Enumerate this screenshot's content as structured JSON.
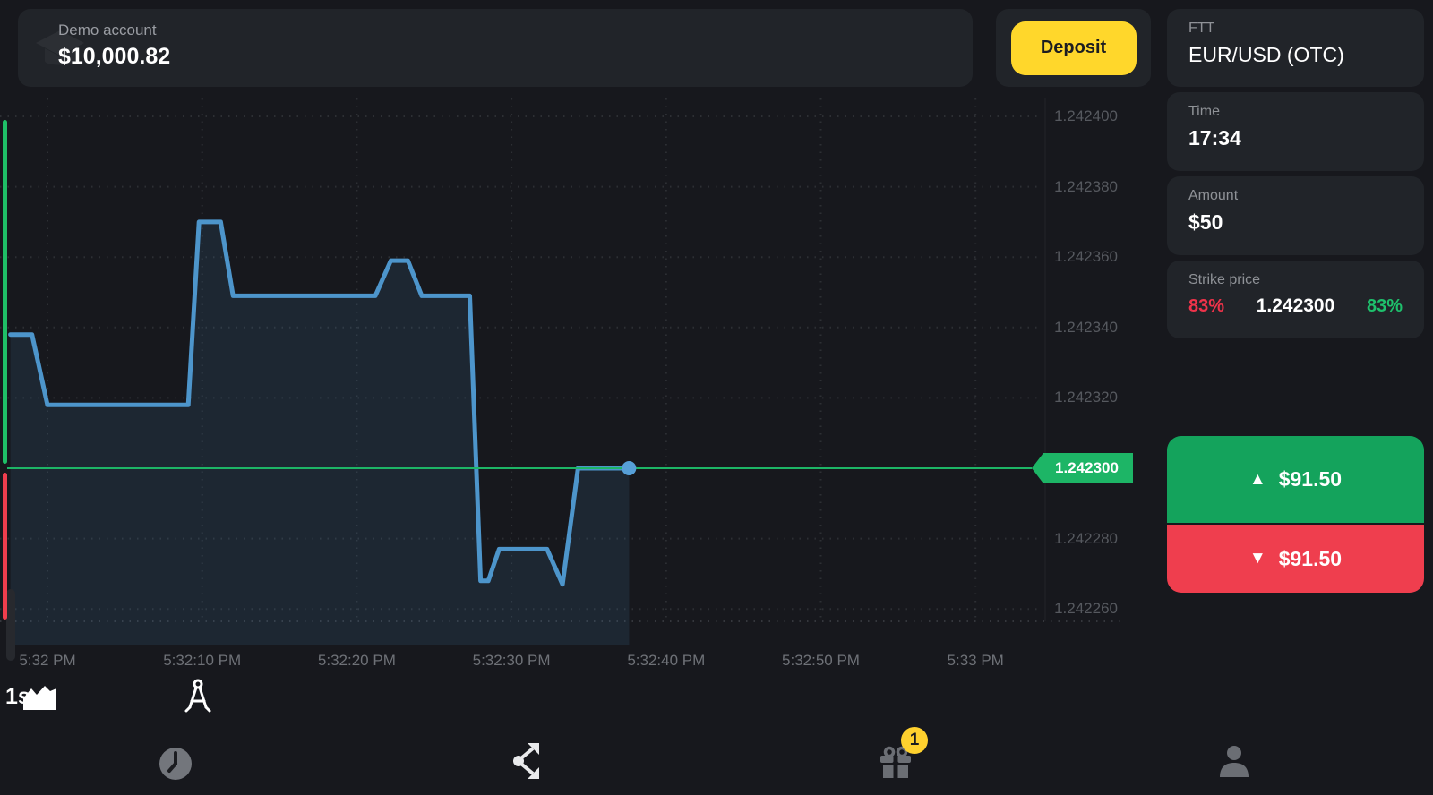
{
  "header": {
    "account_label": "Demo account",
    "balance": "$10,000.82",
    "deposit_label": "Deposit"
  },
  "ticker": {
    "category": "FTT",
    "pair": "EUR/USD (OTC)"
  },
  "order_panel": {
    "time_label": "Time",
    "time_value": "17:34",
    "amount_label": "Amount",
    "amount_value": "$50",
    "strike_label": "Strike price",
    "strike_down_pct": "83%",
    "strike_price": "1.242300",
    "strike_up_pct": "83%",
    "up_arrow": "▲",
    "up_payout": "$91.50",
    "down_arrow": "▼",
    "down_payout": "$91.50"
  },
  "chart_toolbar": {
    "chart_type_icon": "area-chart-icon",
    "timeframe": "1s",
    "drawing_tools_icon": "compass-icon"
  },
  "bottom_nav": {
    "history_icon": "clock-icon",
    "expand_icon": "route-arrows-icon",
    "gift_icon": "gift-icon",
    "gift_badge": "1",
    "profile_icon": "person-icon"
  },
  "chart_data": {
    "type": "area",
    "pair": "EUR/USD (OTC)",
    "timeframe": "1s",
    "grid": true,
    "legend": "none",
    "strike": {
      "price": 1.2423,
      "label": "1.242300"
    },
    "current_point": {
      "t": 37.6,
      "price": 1.2423
    },
    "y_axis": {
      "min": 1.24225,
      "max": 1.24241,
      "ticks": [
        {
          "label": "1.242400",
          "price": 1.2424
        },
        {
          "label": "1.242380",
          "price": 1.24238
        },
        {
          "label": "1.242360",
          "price": 1.24236
        },
        {
          "label": "1.242340",
          "price": 1.24234
        },
        {
          "label": "1.242320",
          "price": 1.24232
        },
        {
          "label": "1.242280",
          "price": 1.24228
        },
        {
          "label": "1.242260",
          "price": 1.24226
        }
      ]
    },
    "x_axis": {
      "unit": "seconds after 5:32:00 PM",
      "ticks": [
        {
          "label": "5:32 PM",
          "t": 0
        },
        {
          "label": "5:32:10 PM",
          "t": 10
        },
        {
          "label": "5:32:20 PM",
          "t": 20
        },
        {
          "label": "5:32:30 PM",
          "t": 30
        },
        {
          "label": "5:32:40 PM",
          "t": 40
        },
        {
          "label": "5:32:50 PM",
          "t": 50
        },
        {
          "label": "5:33 PM",
          "t": 60
        }
      ]
    },
    "series": [
      {
        "name": "EUR/USD (OTC)",
        "points": [
          [
            -2.4,
            1.242338
          ],
          [
            -1.0,
            1.242338
          ],
          [
            0.0,
            1.242318
          ],
          [
            9.1,
            1.242318
          ],
          [
            9.8,
            1.24237
          ],
          [
            11.2,
            1.24237
          ],
          [
            12.0,
            1.242349
          ],
          [
            21.2,
            1.242349
          ],
          [
            22.2,
            1.242359
          ],
          [
            23.3,
            1.242359
          ],
          [
            24.2,
            1.242349
          ],
          [
            27.3,
            1.242349
          ],
          [
            28.0,
            1.242268
          ],
          [
            28.5,
            1.242268
          ],
          [
            29.2,
            1.242277
          ],
          [
            32.3,
            1.242277
          ],
          [
            33.3,
            1.242267
          ],
          [
            34.3,
            1.2423
          ],
          [
            37.6,
            1.2423
          ]
        ]
      }
    ],
    "colors": {
      "line": "#4d95cb",
      "fill": "rgba(77,149,203,0.12)",
      "grid": "#3f4247",
      "strike_line": "#1db566",
      "gauge_up": "#1fbf67",
      "gauge_down": "#f03e4d",
      "dot": "#57a0d8"
    }
  }
}
